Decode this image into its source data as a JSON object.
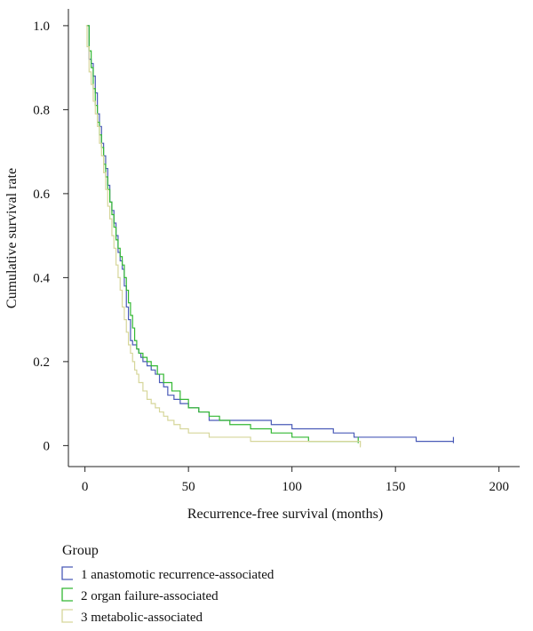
{
  "chart_data": {
    "type": "line",
    "subtype": "kaplan-meier step curves",
    "xlabel": "Recurrence-free survival (months)",
    "ylabel": "Cumulative survival rate",
    "xlim": [
      -8,
      210
    ],
    "ylim": [
      -0.05,
      1.04
    ],
    "xticks": [
      0,
      50,
      100,
      150,
      200
    ],
    "yticks": [
      0,
      0.2,
      0.4,
      0.6,
      0.8,
      1.0
    ],
    "ytick_labels": [
      "0",
      "0.2",
      "0.4",
      "0.6",
      "0.8",
      "1.0"
    ],
    "grid": false,
    "legend": {
      "title": "Group",
      "placement": "bottom-left"
    },
    "series": [
      {
        "name": "1 anastomotic recurrence-associated",
        "color": "#4a5bb8",
        "x": [
          1,
          2,
          3,
          4,
          5,
          6,
          7,
          8,
          9,
          10,
          11,
          12,
          13,
          14,
          15,
          16,
          17,
          18,
          19,
          20,
          21,
          22,
          23,
          24,
          25,
          26,
          27,
          28,
          30,
          32,
          34,
          36,
          38,
          40,
          43,
          46,
          50,
          55,
          60,
          70,
          80,
          90,
          100,
          110,
          120,
          130,
          146,
          160,
          178
        ],
        "y": [
          1.0,
          0.92,
          0.91,
          0.88,
          0.84,
          0.79,
          0.76,
          0.72,
          0.69,
          0.66,
          0.62,
          0.58,
          0.56,
          0.53,
          0.5,
          0.46,
          0.44,
          0.42,
          0.38,
          0.33,
          0.3,
          0.25,
          0.24,
          0.24,
          0.23,
          0.22,
          0.21,
          0.2,
          0.19,
          0.18,
          0.17,
          0.15,
          0.14,
          0.12,
          0.11,
          0.1,
          0.09,
          0.08,
          0.06,
          0.06,
          0.06,
          0.05,
          0.04,
          0.04,
          0.03,
          0.02,
          0.02,
          0.01,
          0.01
        ]
      },
      {
        "name": "2 organ failure-associated",
        "color": "#33b833",
        "x": [
          1,
          2,
          3,
          4,
          5,
          6,
          7,
          8,
          9,
          10,
          11,
          12,
          13,
          14,
          15,
          16,
          17,
          18,
          19,
          20,
          21,
          22,
          23,
          24,
          25,
          26,
          28,
          30,
          32,
          35,
          38,
          42,
          46,
          50,
          55,
          60,
          65,
          70,
          80,
          90,
          100,
          108,
          115,
          125,
          132
        ],
        "y": [
          1.0,
          0.94,
          0.9,
          0.85,
          0.81,
          0.77,
          0.74,
          0.71,
          0.67,
          0.64,
          0.61,
          0.58,
          0.55,
          0.52,
          0.49,
          0.47,
          0.45,
          0.43,
          0.4,
          0.37,
          0.34,
          0.31,
          0.28,
          0.25,
          0.23,
          0.22,
          0.21,
          0.2,
          0.19,
          0.17,
          0.15,
          0.13,
          0.11,
          0.09,
          0.08,
          0.07,
          0.06,
          0.05,
          0.04,
          0.03,
          0.02,
          0.01,
          0.01,
          0.01,
          0.01
        ]
      },
      {
        "name": "3 metabolic-associated",
        "color": "#d6d69a",
        "x": [
          0.5,
          1,
          2,
          3,
          4,
          5,
          6,
          7,
          8,
          9,
          10,
          11,
          12,
          13,
          14,
          15,
          16,
          17,
          18,
          19,
          20,
          21,
          22,
          23,
          24,
          25,
          26,
          28,
          30,
          32,
          34,
          36,
          38,
          40,
          43,
          46,
          50,
          55,
          60,
          70,
          80,
          90,
          100,
          110,
          120,
          133
        ],
        "y": [
          1.0,
          0.95,
          0.89,
          0.86,
          0.82,
          0.79,
          0.76,
          0.72,
          0.69,
          0.65,
          0.61,
          0.57,
          0.54,
          0.5,
          0.47,
          0.43,
          0.4,
          0.37,
          0.33,
          0.3,
          0.27,
          0.24,
          0.22,
          0.2,
          0.18,
          0.17,
          0.15,
          0.13,
          0.11,
          0.1,
          0.09,
          0.08,
          0.07,
          0.06,
          0.05,
          0.04,
          0.03,
          0.03,
          0.02,
          0.02,
          0.01,
          0.01,
          0.01,
          0.01,
          0.01,
          0.0
        ]
      }
    ]
  }
}
